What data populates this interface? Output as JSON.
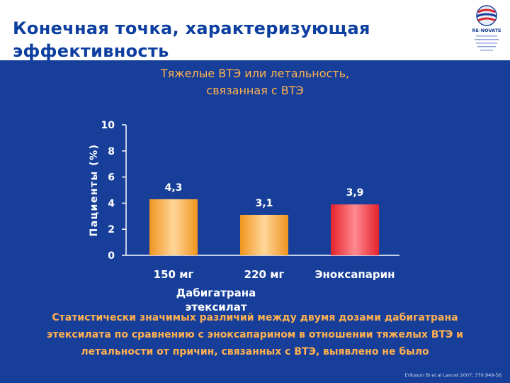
{
  "slide": {
    "title": "Конечная точка, характеризующая эффективность",
    "caption": "Статистически значимых различий между двумя дозами дабигатрана этексилата по сравнению с эноксапарином в отношении тяжелых ВТЭ и летальности от причин, связанных с ВТЭ, выявлено не было",
    "citation": "Eriksson BI et al Lancet 2007; 370:949-56",
    "logo_text": "RE-NOVATE"
  },
  "chart_data": {
    "type": "bar",
    "title": "Тяжелые ВТЭ или летальность, связанная с ВТЭ",
    "ylabel": "Пациенты (%)",
    "group_label": "Дабигатрана этексилат",
    "ylim": [
      0,
      10
    ],
    "yticks": [
      "0",
      "2",
      "4",
      "6",
      "8",
      "10"
    ],
    "categories": [
      "150 мг",
      "220 мг",
      "Эноксапарин"
    ],
    "values": [
      4.3,
      3.1,
      3.9
    ],
    "value_labels": [
      "4,3",
      "3,1",
      "3,9"
    ],
    "colors": [
      "#f49a2a",
      "#f49a2a",
      "#e8232f"
    ],
    "grid": false
  }
}
